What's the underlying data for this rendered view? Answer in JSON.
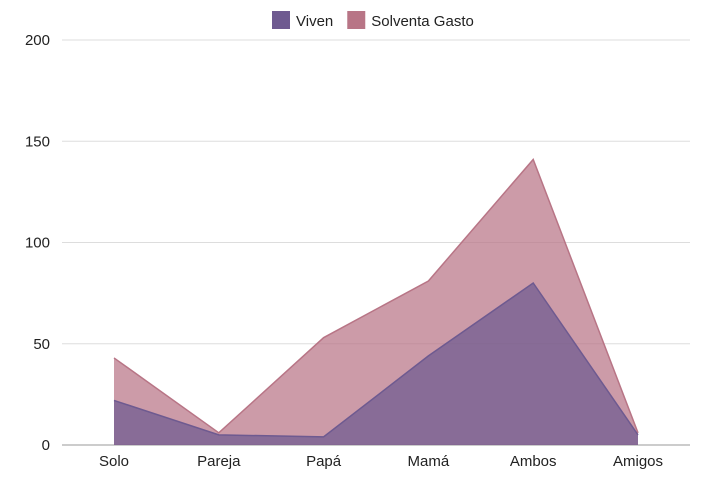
{
  "chart_data": {
    "type": "area",
    "categories": [
      "Solo",
      "Pareja",
      "Papá",
      "Mamá",
      "Ambos",
      "Amigos"
    ],
    "series": [
      {
        "name": "Viven",
        "values": [
          22,
          5,
          4,
          44,
          80,
          5
        ],
        "color": "#6e5a90"
      },
      {
        "name": "Solventa Gasto",
        "values": [
          43,
          6,
          53,
          81,
          141,
          6
        ],
        "color": "#b87586"
      }
    ],
    "ylim": [
      0,
      200
    ],
    "yticks": [
      "0",
      "50",
      "100",
      "150",
      "200"
    ],
    "grid": true,
    "legend": "top-center",
    "title": "",
    "xlabel": "",
    "ylabel": ""
  }
}
